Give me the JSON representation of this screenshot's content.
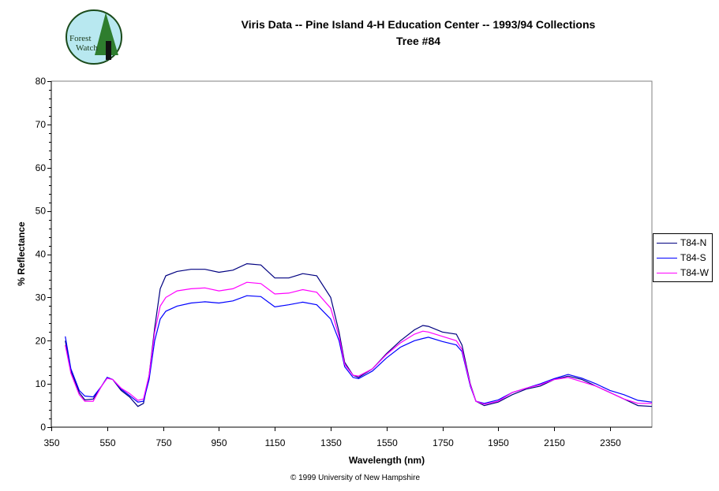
{
  "logo_text": "Forest Watch",
  "chart_data": {
    "type": "line",
    "title": "Viris Data -- Pine Island 4-H Education Center -- 1993/94 Collections",
    "subtitle": "Tree #84",
    "xlabel": "Wavelength (nm)",
    "ylabel": "% Reflectance",
    "xlim": [
      350,
      2500
    ],
    "ylim": [
      0,
      80
    ],
    "x_ticks": [
      350,
      550,
      750,
      950,
      1150,
      1350,
      1550,
      1750,
      1950,
      2150,
      2350
    ],
    "y_ticks": [
      0,
      10,
      20,
      30,
      40,
      50,
      60,
      70,
      80
    ],
    "grid": false,
    "legend": "right",
    "x": [
      400,
      420,
      450,
      470,
      500,
      530,
      550,
      570,
      600,
      630,
      660,
      680,
      700,
      720,
      740,
      760,
      800,
      850,
      900,
      950,
      1000,
      1050,
      1100,
      1150,
      1200,
      1250,
      1300,
      1350,
      1380,
      1400,
      1430,
      1450,
      1500,
      1550,
      1600,
      1650,
      1680,
      1700,
      1750,
      1800,
      1820,
      1850,
      1870,
      1900,
      1950,
      2000,
      2050,
      2100,
      2150,
      2200,
      2250,
      2300,
      2350,
      2400,
      2450,
      2500
    ],
    "series": [
      {
        "name": "T84-N",
        "color": "#000080",
        "values": [
          20,
          13,
          8,
          6.3,
          6.5,
          9.5,
          11.5,
          11,
          8.5,
          7,
          4.8,
          5.5,
          12,
          23,
          32,
          35,
          36,
          36.5,
          36.5,
          35.8,
          36.3,
          37.8,
          37.5,
          34.5,
          34.5,
          35.5,
          35,
          30,
          22,
          15,
          12,
          11.5,
          13.5,
          17,
          20,
          22.5,
          23.5,
          23.3,
          22,
          21.5,
          19,
          10,
          6,
          5,
          5.8,
          7.5,
          8.8,
          9.5,
          11,
          11.8,
          11,
          9.5,
          8,
          6.5,
          5,
          4.8
        ]
      },
      {
        "name": "T84-S",
        "color": "#0000ff",
        "values": [
          21,
          13.5,
          8.5,
          7.2,
          7,
          9.5,
          11.5,
          11,
          8.8,
          7.3,
          5.8,
          6,
          11,
          20,
          25,
          26.8,
          28,
          28.7,
          29,
          28.7,
          29.2,
          30.4,
          30.2,
          27.8,
          28.3,
          28.9,
          28.3,
          25,
          20,
          14,
          11.5,
          11.2,
          13,
          16,
          18.5,
          20,
          20.5,
          20.8,
          19.8,
          19,
          17.5,
          9.5,
          6,
          5.5,
          6.3,
          8,
          9,
          10,
          11.2,
          12.2,
          11.3,
          10,
          8.5,
          7.5,
          6.2,
          5.8
        ]
      },
      {
        "name": "T84-W",
        "color": "#ff00ff",
        "values": [
          19,
          12.5,
          7.5,
          6,
          6,
          9.5,
          11.3,
          11,
          9,
          7.8,
          6.2,
          6.5,
          12,
          22,
          28,
          30,
          31.5,
          32,
          32.2,
          31.5,
          32,
          33.5,
          33.2,
          30.8,
          31,
          31.8,
          31.2,
          27.5,
          21,
          14.5,
          12,
          11.8,
          13.5,
          16.8,
          19.5,
          21.5,
          22.2,
          22,
          21,
          20,
          18,
          9.8,
          6,
          5.3,
          6,
          8,
          9,
          9.8,
          11,
          11.5,
          10.5,
          9.5,
          8,
          6.5,
          5.5,
          5.5
        ]
      }
    ]
  },
  "copyright": "© 1999 University of New Hampshire"
}
